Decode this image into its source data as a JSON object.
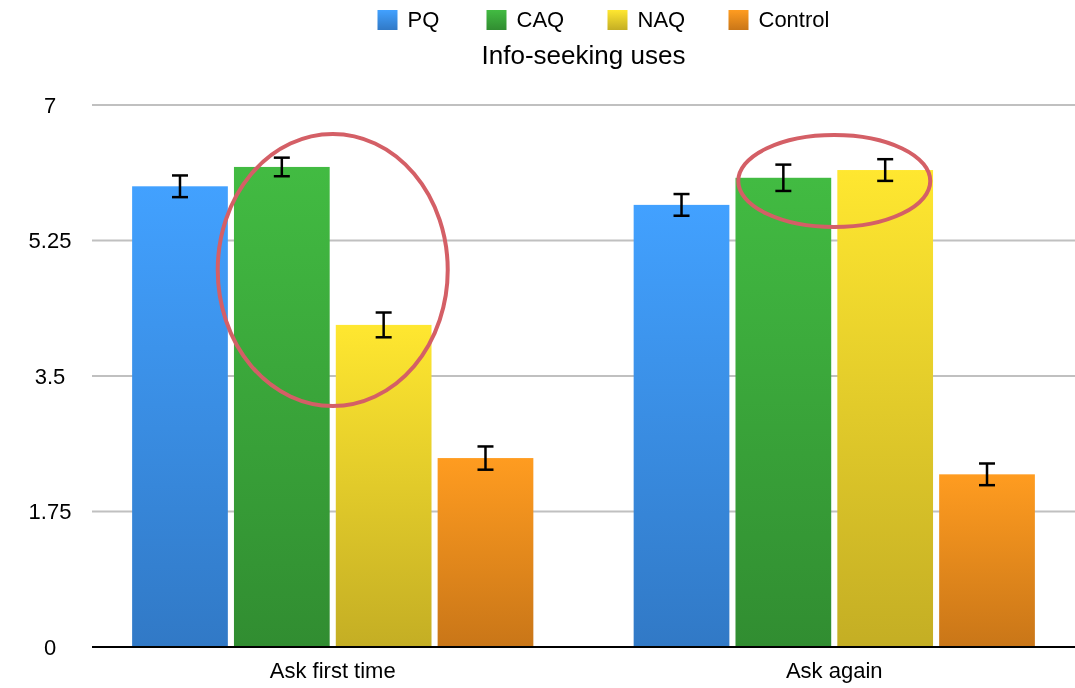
{
  "chart_data": {
    "type": "bar",
    "title": "Info-seeking uses",
    "categories": [
      "Ask first time",
      "Ask again"
    ],
    "series": [
      {
        "name": "PQ",
        "color": "#3a8ee8",
        "values": [
          5.95,
          5.71
        ],
        "errors": [
          0.14,
          0.14
        ]
      },
      {
        "name": "CAQ",
        "color": "#3aa53a",
        "values": [
          6.2,
          6.06
        ],
        "errors": [
          0.12,
          0.17
        ]
      },
      {
        "name": "NAQ",
        "color": "#e6cc2a",
        "values": [
          4.16,
          6.16
        ],
        "errors": [
          0.16,
          0.14
        ]
      },
      {
        "name": "Control",
        "color": "#ec8a1c",
        "values": [
          2.44,
          2.23
        ],
        "errors": [
          0.15,
          0.14
        ]
      }
    ],
    "ylim": [
      0,
      7
    ],
    "yticks": [
      0,
      1.75,
      3.5,
      5.25,
      7
    ],
    "grid": "y",
    "legend": "top"
  }
}
